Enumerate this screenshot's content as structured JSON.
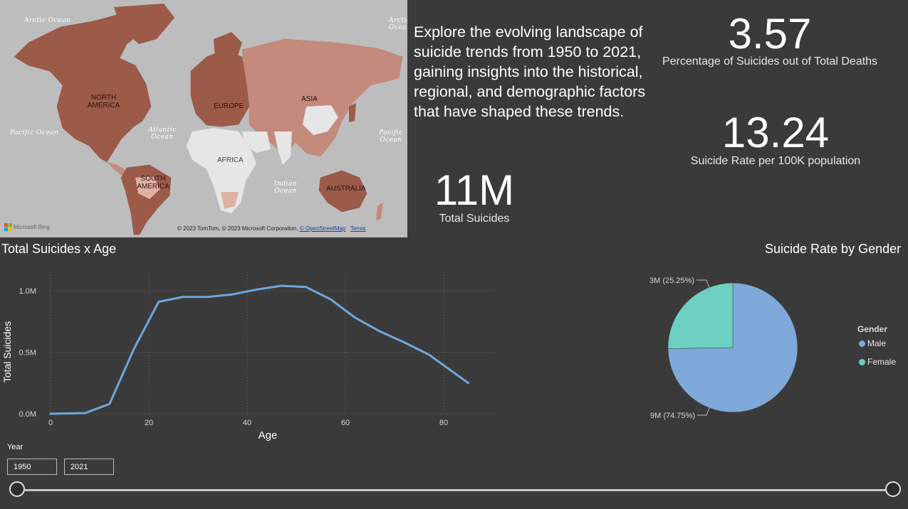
{
  "map": {
    "oceans": {
      "arctic_left": "Arctic Ocean",
      "arctic_right": "Arctic Ocean",
      "pacific_left": "Pacific Ocean",
      "atlantic": "Atlantic Ocean",
      "pacific_right": "Pacific Ocean",
      "indian": "Indian Ocean"
    },
    "regions": {
      "north_america": "NORTH AMERICA",
      "europe": "EUROPE",
      "asia": "ASIA",
      "africa": "AFRICA",
      "south_america": "SOUTH AMERICA",
      "australia": "AUSTRALIA"
    },
    "logo_text": "Microsoft Bing",
    "credits_text": "© 2023 TomTom, © 2023 Microsoft Corporation,",
    "credits_link_osm": "© OpenStreetMap",
    "credits_link_terms": "Terms",
    "colors": {
      "background": "#bdbdbd",
      "high": "#9c5a49",
      "mid": "#c48a7c",
      "low": "#dfb0a4",
      "no_data": "#e6e6e6"
    }
  },
  "intro_text": "Explore the evolving landscape of suicide trends from 1950 to 2021, gaining insights into the historical, regional, and demographic factors that have shaped these trends.",
  "kpis": {
    "pct": {
      "value": "3.57",
      "label": "Percentage of Suicides out of Total Deaths"
    },
    "rate": {
      "value": "13.24",
      "label": "Suicide Rate per 100K population"
    },
    "total": {
      "value": "11M",
      "label": "Total Suicides"
    }
  },
  "line_chart": {
    "title": "Total Suicides x Age",
    "line_color": "#6ea6dc",
    "chart_data": {
      "type": "line",
      "xlabel": "Age",
      "ylabel": "Total Suicides",
      "xlim": [
        0,
        90
      ],
      "ylim": [
        0,
        1150000
      ],
      "x_ticks": [
        0,
        20,
        40,
        60,
        80
      ],
      "x_tick_labels": [
        "0",
        "20",
        "40",
        "60",
        "80"
      ],
      "y_ticks": [
        0,
        500000,
        1000000
      ],
      "y_tick_labels": [
        "0.0M",
        "0.5M",
        "1.0M"
      ],
      "grid": true,
      "x": [
        0,
        7,
        12,
        17,
        22,
        27,
        32,
        37,
        42,
        47,
        52,
        57,
        62,
        67,
        72,
        77,
        85
      ],
      "y": [
        0,
        5000,
        80000,
        530000,
        910000,
        950000,
        950000,
        970000,
        1010000,
        1040000,
        1030000,
        930000,
        780000,
        670000,
        580000,
        480000,
        250000
      ]
    }
  },
  "pie_chart": {
    "title": "Suicide Rate by Gender",
    "legend_title": "Gender",
    "chart_data": {
      "type": "pie",
      "legend": "right",
      "slices": [
        {
          "name": "Male",
          "value": 74.75,
          "label": "9M (74.75%)",
          "color": "#7ea9d8"
        },
        {
          "name": "Female",
          "value": 25.25,
          "label": "3M (25.25%)",
          "color": "#6dd0c0"
        }
      ]
    }
  },
  "year_filter": {
    "label": "Year",
    "start": "1950",
    "end": "2021",
    "range_fraction": [
      0,
      1
    ]
  }
}
